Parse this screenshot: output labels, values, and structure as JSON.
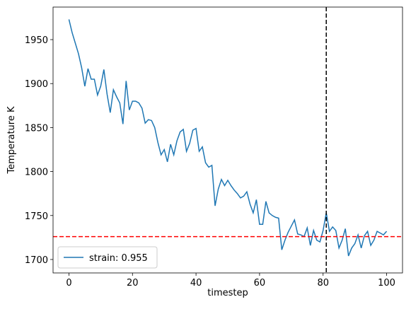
{
  "chart_data": {
    "type": "line",
    "xlabel": "timestep",
    "ylabel": "Temperature K",
    "x": [
      0,
      1,
      2,
      3,
      4,
      5,
      6,
      7,
      8,
      9,
      10,
      11,
      12,
      13,
      14,
      15,
      16,
      17,
      18,
      19,
      20,
      21,
      22,
      23,
      24,
      25,
      26,
      27,
      28,
      29,
      30,
      31,
      32,
      33,
      34,
      35,
      36,
      37,
      38,
      39,
      40,
      41,
      42,
      43,
      44,
      45,
      46,
      47,
      48,
      49,
      50,
      51,
      52,
      53,
      54,
      55,
      56,
      57,
      58,
      59,
      60,
      61,
      62,
      63,
      64,
      65,
      66,
      67,
      68,
      69,
      70,
      71,
      72,
      73,
      74,
      75,
      76,
      77,
      78,
      79,
      80,
      81,
      82,
      83,
      84,
      85,
      86,
      87,
      88,
      89,
      90,
      91,
      92,
      93,
      94,
      95,
      96,
      97,
      98,
      99,
      100
    ],
    "series": [
      {
        "name": "strain: 0.955",
        "color": "#1f77b4",
        "values": [
          1973,
          1958,
          1946,
          1934,
          1918,
          1897,
          1917,
          1905,
          1905,
          1887,
          1897,
          1916,
          1888,
          1867,
          1893,
          1885,
          1878,
          1854,
          1903,
          1870,
          1880,
          1880,
          1878,
          1872,
          1855,
          1859,
          1858,
          1850,
          1833,
          1819,
          1825,
          1811,
          1831,
          1819,
          1835,
          1845,
          1848,
          1823,
          1832,
          1847,
          1849,
          1823,
          1828,
          1810,
          1805,
          1807,
          1761,
          1780,
          1791,
          1784,
          1790,
          1784,
          1779,
          1775,
          1770,
          1772,
          1777,
          1763,
          1753,
          1768,
          1740,
          1740,
          1766,
          1753,
          1750,
          1748,
          1747,
          1711,
          1722,
          1731,
          1738,
          1745,
          1729,
          1728,
          1726,
          1736,
          1716,
          1733,
          1722,
          1720,
          1733,
          1753,
          1732,
          1737,
          1733,
          1713,
          1722,
          1735,
          1704,
          1713,
          1718,
          1728,
          1713,
          1727,
          1732,
          1716,
          1722,
          1732,
          1730,
          1728,
          1732
        ]
      }
    ],
    "hline": {
      "value": 1726,
      "color": "#ff0000"
    },
    "vline": {
      "value": 81,
      "color": "#000000"
    },
    "xlim": [
      -5,
      105
    ],
    "ylim": [
      1684.7,
      1987
    ],
    "xticks": [
      0,
      20,
      40,
      60,
      80,
      100
    ],
    "yticks": [
      1700,
      1750,
      1800,
      1850,
      1900,
      1950
    ],
    "legend": "lower left"
  }
}
